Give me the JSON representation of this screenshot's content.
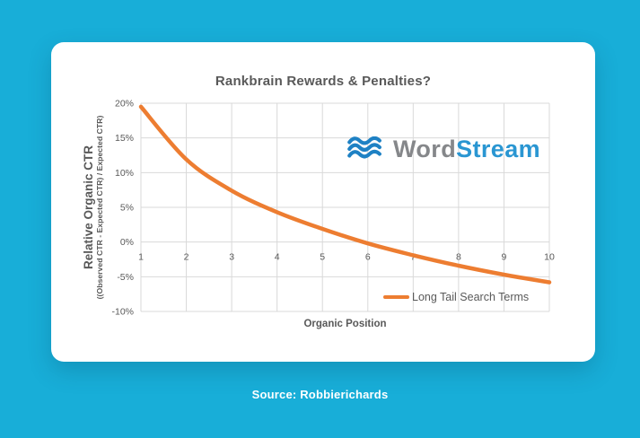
{
  "page": {
    "source_label": "Source: Robbieri",
    "source_label_full": "Source: Robbierichards"
  },
  "logo": {
    "word": "Word",
    "stream": "Stream",
    "word_color": "#85878a",
    "stream_color": "#2a96d2",
    "wave_color": "#1e81c4"
  },
  "colors": {
    "background": "#18aed8",
    "card": "#ffffff",
    "series_orange": "#ED7D31",
    "grid": "#d9d9d9",
    "text_gray": "#595959"
  },
  "chart_data": {
    "type": "line",
    "title": "Rankbrain Rewards & Penalties?",
    "xlabel": "Organic Position",
    "ylabel": "Relative Organic CTR",
    "ylabel_sub": "((Observed CTR - Expected CTR) / Expected CTR)",
    "x": [
      1,
      2,
      3,
      4,
      5,
      6,
      7,
      8,
      9,
      10
    ],
    "series": [
      {
        "name": "Long Tail Search Terms",
        "color": "#ED7D31",
        "values": [
          19.5,
          11.9,
          7.4,
          4.3,
          1.9,
          -0.2,
          -1.9,
          -3.4,
          -4.7,
          -5.8
        ]
      }
    ],
    "x_ticks": [
      "1",
      "2",
      "3",
      "4",
      "5",
      "6",
      "7",
      "8",
      "9",
      "10"
    ],
    "y_ticks": [
      {
        "value": 20,
        "label": "20%"
      },
      {
        "value": 15,
        "label": "15%"
      },
      {
        "value": 10,
        "label": "10%"
      },
      {
        "value": 5,
        "label": "5%"
      },
      {
        "value": 0,
        "label": "0%"
      },
      {
        "value": -5,
        "label": "-5%"
      },
      {
        "value": -10,
        "label": "-10%"
      }
    ],
    "xlim": [
      1,
      10
    ],
    "ylim": [
      -10,
      20
    ],
    "grid": true,
    "legend_position": "inside-bottom-right"
  }
}
